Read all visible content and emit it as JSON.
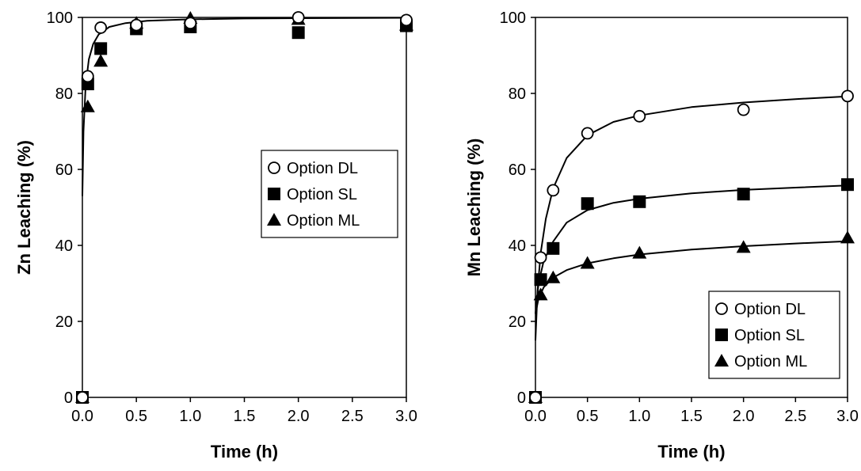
{
  "chart_data": [
    {
      "type": "scatter",
      "xlabel": "Time (h)",
      "ylabel": "Zn Leaching (%)",
      "xlim": [
        0,
        3.0
      ],
      "ylim": [
        0,
        100
      ],
      "xticks": [
        "0.0",
        "0.5",
        "1.0",
        "1.5",
        "2.0",
        "2.5",
        "3.0"
      ],
      "yticks": [
        "0",
        "20",
        "40",
        "60",
        "80",
        "100"
      ],
      "legend_position": "middle-right",
      "series": [
        {
          "name": "Option DL",
          "marker": "open-circle",
          "x": [
            0,
            0.05,
            0.17,
            0.5,
            1.0,
            2.0,
            3.0
          ],
          "y": [
            0,
            84.5,
            97.3,
            98.0,
            98.5,
            100.0,
            99.3
          ],
          "fit": [
            [
              0.0,
              53
            ],
            [
              0.01,
              70
            ],
            [
              0.03,
              82
            ],
            [
              0.06,
              89
            ],
            [
              0.1,
              93
            ],
            [
              0.15,
              95.5
            ],
            [
              0.25,
              97.5
            ],
            [
              0.4,
              98.5
            ],
            [
              0.6,
              99.1
            ],
            [
              1.0,
              99.5
            ],
            [
              1.5,
              99.7
            ],
            [
              2.0,
              99.8
            ],
            [
              3.0,
              99.9
            ]
          ]
        },
        {
          "name": "Option SL",
          "marker": "filled-square",
          "x": [
            0,
            0.05,
            0.17,
            0.5,
            1.0,
            2.0,
            3.0
          ],
          "y": [
            0,
            82.5,
            91.8,
            97.0,
            97.5,
            96.0,
            97.8
          ]
        },
        {
          "name": "Option ML",
          "marker": "filled-triangle",
          "x": [
            0,
            0.05,
            0.17,
            0.5,
            1.0,
            2.0,
            3.0
          ],
          "y": [
            0,
            76.5,
            88.5,
            98.5,
            99.8,
            99.5,
            98.0
          ]
        }
      ]
    },
    {
      "type": "scatter",
      "xlabel": "Time (h)",
      "ylabel": "Mn Leaching (%)",
      "xlim": [
        0,
        3.0
      ],
      "ylim": [
        0,
        100
      ],
      "xticks": [
        "0.0",
        "0.5",
        "1.0",
        "1.5",
        "2.0",
        "2.5",
        "3.0"
      ],
      "yticks": [
        "0",
        "20",
        "40",
        "60",
        "80",
        "100"
      ],
      "legend_position": "bottom-right",
      "series": [
        {
          "name": "Option DL",
          "marker": "open-circle",
          "x": [
            0,
            0.05,
            0.17,
            0.5,
            1.0,
            2.0,
            3.0
          ],
          "y": [
            0,
            36.8,
            54.5,
            69.5,
            74.0,
            75.7,
            79.3
          ],
          "fit": [
            [
              0.0,
              15
            ],
            [
              0.02,
              28
            ],
            [
              0.05,
              38
            ],
            [
              0.1,
              47
            ],
            [
              0.17,
              55
            ],
            [
              0.3,
              63
            ],
            [
              0.5,
              69
            ],
            [
              0.75,
              72.5
            ],
            [
              1.0,
              74.2
            ],
            [
              1.5,
              76.4
            ],
            [
              2.0,
              77.6
            ],
            [
              2.5,
              78.5
            ],
            [
              3.0,
              79.2
            ]
          ]
        },
        {
          "name": "Option SL",
          "marker": "filled-square",
          "x": [
            0,
            0.05,
            0.17,
            0.5,
            1.0,
            2.0,
            3.0
          ],
          "y": [
            0,
            31.0,
            39.2,
            51.0,
            51.5,
            53.5,
            56.0
          ],
          "fit": [
            [
              0.0,
              22
            ],
            [
              0.03,
              30
            ],
            [
              0.08,
              36
            ],
            [
              0.17,
              41
            ],
            [
              0.3,
              46
            ],
            [
              0.5,
              49.3
            ],
            [
              0.75,
              51.2
            ],
            [
              1.0,
              52.3
            ],
            [
              1.5,
              53.7
            ],
            [
              2.0,
              54.6
            ],
            [
              2.5,
              55.2
            ],
            [
              3.0,
              55.8
            ]
          ]
        },
        {
          "name": "Option ML",
          "marker": "filled-triangle",
          "x": [
            0,
            0.05,
            0.17,
            0.5,
            1.0,
            2.0,
            3.0
          ],
          "y": [
            0,
            27.0,
            31.5,
            35.3,
            38.0,
            39.5,
            42.0
          ],
          "fit": [
            [
              0.0,
              22
            ],
            [
              0.03,
              26
            ],
            [
              0.08,
              29
            ],
            [
              0.17,
              31.5
            ],
            [
              0.3,
              33.5
            ],
            [
              0.5,
              35.3
            ],
            [
              0.75,
              36.6
            ],
            [
              1.0,
              37.6
            ],
            [
              1.5,
              38.9
            ],
            [
              2.0,
              39.8
            ],
            [
              2.5,
              40.5
            ],
            [
              3.0,
              41.1
            ]
          ]
        }
      ]
    }
  ]
}
